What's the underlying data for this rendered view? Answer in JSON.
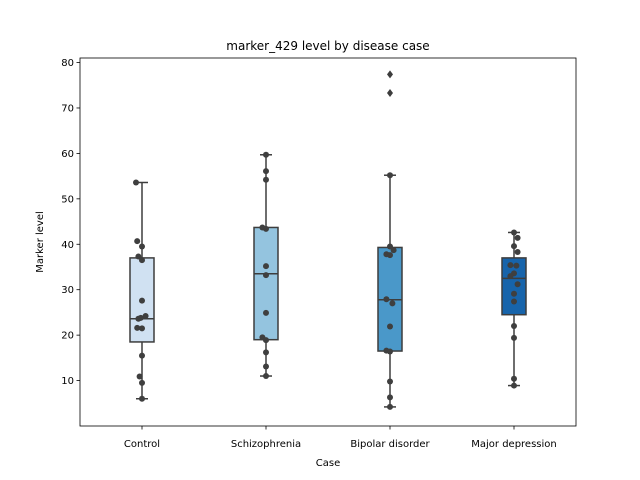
{
  "chart_data": {
    "type": "box",
    "title": "marker_429 level by disease case",
    "xlabel": "Case",
    "ylabel": "Marker level",
    "ylim": [
      0,
      81
    ],
    "yticks": [
      10,
      20,
      30,
      40,
      50,
      60,
      70,
      80
    ],
    "grid": false,
    "legend": "none",
    "categories": [
      "Control",
      "Schizophrenia",
      "Bipolar disorder",
      "Major depression"
    ],
    "colors": [
      "#d0e1f2",
      "#94c4df",
      "#4a98c9",
      "#1764ab"
    ],
    "boxes": [
      {
        "category": "Control",
        "whisker_low": 6.0,
        "q1": 18.5,
        "median": 23.6,
        "q3": 37.0,
        "whisker_high": 53.6,
        "outliers": []
      },
      {
        "category": "Schizophrenia",
        "whisker_low": 11.0,
        "q1": 19.0,
        "median": 33.5,
        "q3": 43.7,
        "whisker_high": 59.7,
        "outliers": []
      },
      {
        "category": "Bipolar disorder",
        "whisker_low": 4.2,
        "q1": 16.5,
        "median": 27.8,
        "q3": 39.3,
        "whisker_high": 55.2,
        "outliers": [
          73.3,
          77.4
        ]
      },
      {
        "category": "Major depression",
        "whisker_low": 8.9,
        "q1": 24.5,
        "median": 32.5,
        "q3": 37.0,
        "whisker_high": 42.6,
        "outliers": []
      }
    ],
    "points": [
      {
        "category": "Control",
        "values": [
          [
            -0.5,
            53.6
          ],
          [
            -0.4,
            40.7
          ],
          [
            0.0,
            39.5
          ],
          [
            -0.3,
            37.3
          ],
          [
            0.0,
            36.5
          ],
          [
            0.0,
            27.6
          ],
          [
            0.3,
            24.2
          ],
          [
            -0.3,
            23.6
          ],
          [
            -0.1,
            23.8
          ],
          [
            -0.4,
            21.6
          ],
          [
            0.0,
            21.5
          ],
          [
            0.0,
            15.5
          ],
          [
            -0.2,
            10.9
          ],
          [
            0.0,
            9.5
          ],
          [
            0.0,
            6.0
          ]
        ]
      },
      {
        "category": "Schizophrenia",
        "values": [
          [
            0.0,
            59.7
          ],
          [
            0.0,
            56.1
          ],
          [
            0.0,
            54.2
          ],
          [
            -0.3,
            43.7
          ],
          [
            0.0,
            43.4
          ],
          [
            0.0,
            35.2
          ],
          [
            0.0,
            33.2
          ],
          [
            0.0,
            24.9
          ],
          [
            -0.3,
            19.5
          ],
          [
            0.0,
            18.9
          ],
          [
            0.0,
            16.2
          ],
          [
            0.0,
            13.1
          ],
          [
            0.0,
            11.0
          ]
        ]
      },
      {
        "category": "Bipolar disorder",
        "values": [
          [
            0.0,
            55.2
          ],
          [
            0.0,
            39.5
          ],
          [
            -0.3,
            37.8
          ],
          [
            0.3,
            38.7
          ],
          [
            0.0,
            37.6
          ],
          [
            -0.3,
            27.9
          ],
          [
            0.2,
            27.0
          ],
          [
            0.0,
            21.9
          ],
          [
            -0.3,
            16.6
          ],
          [
            0.0,
            16.4
          ],
          [
            0.0,
            9.8
          ],
          [
            0.0,
            6.3
          ],
          [
            0.0,
            4.2
          ]
        ]
      },
      {
        "category": "Major depression",
        "values": [
          [
            0.0,
            42.6
          ],
          [
            0.3,
            41.4
          ],
          [
            0.0,
            39.6
          ],
          [
            0.3,
            38.3
          ],
          [
            -0.3,
            35.4
          ],
          [
            0.2,
            35.3
          ],
          [
            0.0,
            33.6
          ],
          [
            -0.3,
            33.0
          ],
          [
            0.3,
            31.2
          ],
          [
            0.0,
            29.1
          ],
          [
            0.0,
            27.4
          ],
          [
            0.0,
            22.0
          ],
          [
            0.0,
            19.4
          ],
          [
            0.0,
            10.4
          ],
          [
            0.0,
            8.9
          ]
        ]
      }
    ]
  }
}
